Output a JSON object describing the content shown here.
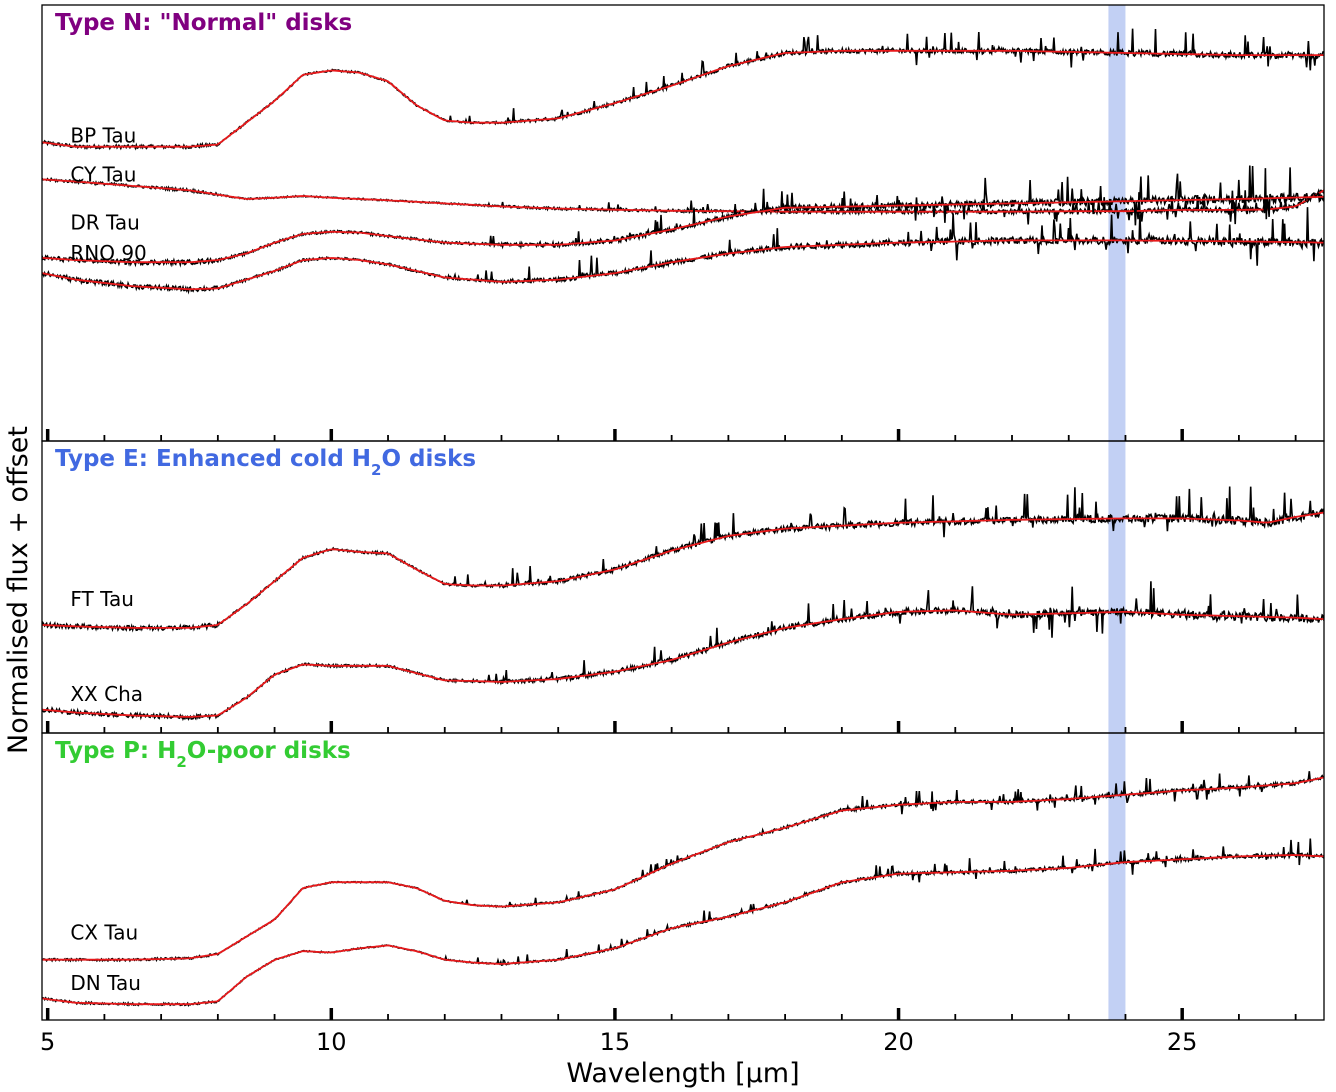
{
  "chart_data": {
    "type": "line",
    "xlabel": "Wavelength [µm]",
    "ylabel": "Normalised flux + offset",
    "xlim": [
      4.9,
      27.5
    ],
    "x_ticks": [
      5,
      10,
      15,
      20,
      25
    ],
    "shaded_band": [
      23.7,
      24.0
    ],
    "colors": {
      "observed": "#000000",
      "model": "#e8191b",
      "band": "#aec0f0"
    },
    "panels": [
      {
        "title_prefix": "Type N: \"Normal\" disks",
        "title_color": "#800080",
        "title_parts": [
          {
            "t": "Type N: \"Normal\" disks"
          }
        ],
        "ylim": [
          0,
          100
        ],
        "series": [
          {
            "name": "BP Tau",
            "noise": 0.9,
            "x": [
              4.9,
              5.5,
              6.5,
              7.5,
              8.0,
              8.5,
              9.0,
              9.5,
              10.0,
              10.5,
              11.0,
              11.5,
              12.0,
              12.5,
              13.0,
              14.0,
              15.0,
              16.0,
              17.0,
              18.0,
              19.0,
              20.0,
              22.0,
              24.0,
              26.0,
              27.5
            ],
            "y": [
              68.5,
              67.5,
              67.5,
              67.5,
              68.0,
              73.0,
              78.0,
              84.0,
              85.0,
              84.5,
              82.5,
              77.0,
              73.5,
              73.0,
              73.0,
              74.0,
              77.5,
              81.5,
              86.0,
              89.0,
              89.5,
              89.5,
              89.5,
              89.0,
              88.5,
              88.5
            ]
          },
          {
            "name": "CY Tau",
            "noise": 0.7,
            "x": [
              4.9,
              5.5,
              6.5,
              7.5,
              8.0,
              8.5,
              9.0,
              9.5,
              10.0,
              11.0,
              12.0,
              13.0,
              14.0,
              16.0,
              18.0,
              20.0,
              22.0,
              23.0,
              24.0,
              25.0,
              26.0,
              26.5,
              27.0,
              27.5
            ],
            "y": [
              60.0,
              59.5,
              58.5,
              57.5,
              56.5,
              55.5,
              55.8,
              56.2,
              55.8,
              55.2,
              54.5,
              53.8,
              53.3,
              52.8,
              52.6,
              52.6,
              52.6,
              52.7,
              52.7,
              53.0,
              53.0,
              53.1,
              53.8,
              57.5
            ]
          },
          {
            "name": "DR Tau",
            "noise": 1.2,
            "x": [
              4.9,
              5.5,
              6.5,
              7.5,
              8.0,
              8.5,
              9.0,
              9.5,
              10.0,
              10.5,
              11.0,
              12.0,
              13.0,
              14.0,
              15.0,
              16.0,
              17.0,
              18.0,
              20.0,
              22.0,
              24.0,
              26.0,
              27.5
            ],
            "y": [
              42.0,
              41.5,
              41.0,
              41.0,
              41.5,
              43.0,
              45.5,
              47.5,
              48.0,
              47.8,
              47.0,
              45.5,
              45.0,
              45.0,
              46.0,
              48.5,
              51.5,
              53.5,
              54.0,
              54.5,
              55.0,
              55.5,
              56.0
            ]
          },
          {
            "name": "RNO 90",
            "noise": 1.2,
            "x": [
              4.9,
              5.5,
              6.5,
              7.5,
              8.0,
              8.5,
              9.0,
              9.5,
              10.0,
              10.5,
              11.0,
              12.0,
              13.0,
              14.0,
              15.0,
              16.0,
              17.0,
              18.0,
              20.0,
              22.0,
              24.0,
              26.0,
              27.5
            ],
            "y": [
              38.5,
              37.0,
              35.5,
              34.8,
              35.0,
              37.0,
              39.0,
              41.5,
              42.0,
              41.5,
              40.5,
              37.5,
              36.5,
              37.0,
              38.5,
              41.0,
              43.0,
              44.5,
              45.5,
              46.0,
              46.0,
              45.8,
              45.5
            ]
          }
        ],
        "label_pos": [
          [
            5.4,
            68.5
          ],
          [
            5.4,
            59.5
          ],
          [
            5.4,
            48.5
          ],
          [
            5.4,
            41.5
          ]
        ]
      },
      {
        "title_prefix": "Type E: Enhanced cold H",
        "title_color": "#4169e1",
        "title_parts": [
          {
            "t": "Type E: Enhanced cold H"
          },
          {
            "t": "2",
            "sub": true
          },
          {
            "t": "O disks"
          }
        ],
        "ylim": [
          0,
          100
        ],
        "series": [
          {
            "name": "FT Tau",
            "noise": 1.8,
            "x": [
              4.9,
              5.5,
              6.5,
              7.5,
              8.0,
              8.5,
              9.0,
              9.5,
              10.0,
              10.5,
              11.0,
              11.5,
              12.0,
              12.5,
              13.0,
              14.0,
              15.0,
              16.0,
              17.0,
              18.0,
              20.0,
              22.0,
              24.0,
              25.0,
              26.0,
              26.5,
              27.0,
              27.5
            ],
            "y": [
              37.0,
              36.5,
              36.0,
              36.0,
              37.0,
              44.0,
              52.0,
              60.0,
              63.0,
              62.0,
              61.5,
              56.0,
              51.0,
              50.5,
              50.5,
              52.0,
              56.0,
              62.5,
              67.5,
              70.0,
              72.0,
              73.0,
              73.5,
              73.5,
              72.8,
              72.0,
              74.0,
              75.5
            ]
          },
          {
            "name": "XX Cha",
            "noise": 1.8,
            "x": [
              4.9,
              5.5,
              6.5,
              7.5,
              8.0,
              8.5,
              9.0,
              9.5,
              10.0,
              10.5,
              11.0,
              11.5,
              12.0,
              12.5,
              13.0,
              14.0,
              15.0,
              16.0,
              17.0,
              18.0,
              19.0,
              20.0,
              21.0,
              22.0,
              23.0,
              24.0,
              25.0,
              26.0,
              27.0,
              27.5
            ],
            "y": [
              8.0,
              7.0,
              6.0,
              5.5,
              6.0,
              12.0,
              20.0,
              23.5,
              23.0,
              23.0,
              23.0,
              20.5,
              18.0,
              17.8,
              17.5,
              18.5,
              21.0,
              25.0,
              31.0,
              36.0,
              39.0,
              41.5,
              42.0,
              40.5,
              41.0,
              41.5,
              40.5,
              40.0,
              39.5,
              39.0
            ]
          }
        ],
        "label_pos": [
          [
            5.4,
            43.5
          ],
          [
            5.4,
            11.0
          ]
        ]
      },
      {
        "title_prefix": "Type P: H",
        "title_color": "#33cc33",
        "title_parts": [
          {
            "t": "Type P: H"
          },
          {
            "t": "2",
            "sub": true
          },
          {
            "t": "O-poor disks"
          }
        ],
        "ylim": [
          0,
          100
        ],
        "series": [
          {
            "name": "CX Tau",
            "noise": 0.9,
            "x": [
              4.9,
              5.5,
              6.5,
              7.5,
              8.0,
              8.5,
              9.0,
              9.5,
              10.0,
              10.5,
              11.0,
              11.5,
              12.0,
              12.5,
              13.0,
              14.0,
              15.0,
              16.0,
              17.0,
              18.0,
              19.0,
              20.0,
              21.0,
              22.0,
              23.0,
              24.0,
              25.0,
              26.0,
              27.0,
              27.5
            ],
            "y": [
              21.0,
              21.0,
              21.0,
              21.5,
              23.0,
              29.0,
              35.0,
              46.0,
              48.0,
              48.0,
              48.0,
              46.0,
              41.5,
              40.0,
              39.5,
              41.0,
              45.5,
              54.5,
              62.0,
              67.0,
              73.0,
              75.0,
              76.0,
              76.0,
              77.0,
              78.5,
              80.0,
              81.0,
              82.5,
              84.5
            ]
          },
          {
            "name": "DN Tau",
            "noise": 0.9,
            "x": [
              4.9,
              5.5,
              6.5,
              7.5,
              8.0,
              8.5,
              9.0,
              9.5,
              10.0,
              10.5,
              11.0,
              11.5,
              12.0,
              12.5,
              13.0,
              14.0,
              15.0,
              16.0,
              17.0,
              18.0,
              19.0,
              20.0,
              21.0,
              22.0,
              23.0,
              24.0,
              25.0,
              26.0,
              27.0,
              27.5
            ],
            "y": [
              7.5,
              6.0,
              5.5,
              5.5,
              6.5,
              15.0,
              21.0,
              24.0,
              23.5,
              25.0,
              26.0,
              24.0,
              21.0,
              20.0,
              19.5,
              21.0,
              25.0,
              32.0,
              36.0,
              41.0,
              48.0,
              51.0,
              51.5,
              52.0,
              53.0,
              55.0,
              56.0,
              57.0,
              57.5,
              57.0
            ]
          }
        ],
        "label_pos": [
          [
            5.4,
            28.0
          ],
          [
            5.4,
            10.5
          ]
        ]
      }
    ]
  }
}
